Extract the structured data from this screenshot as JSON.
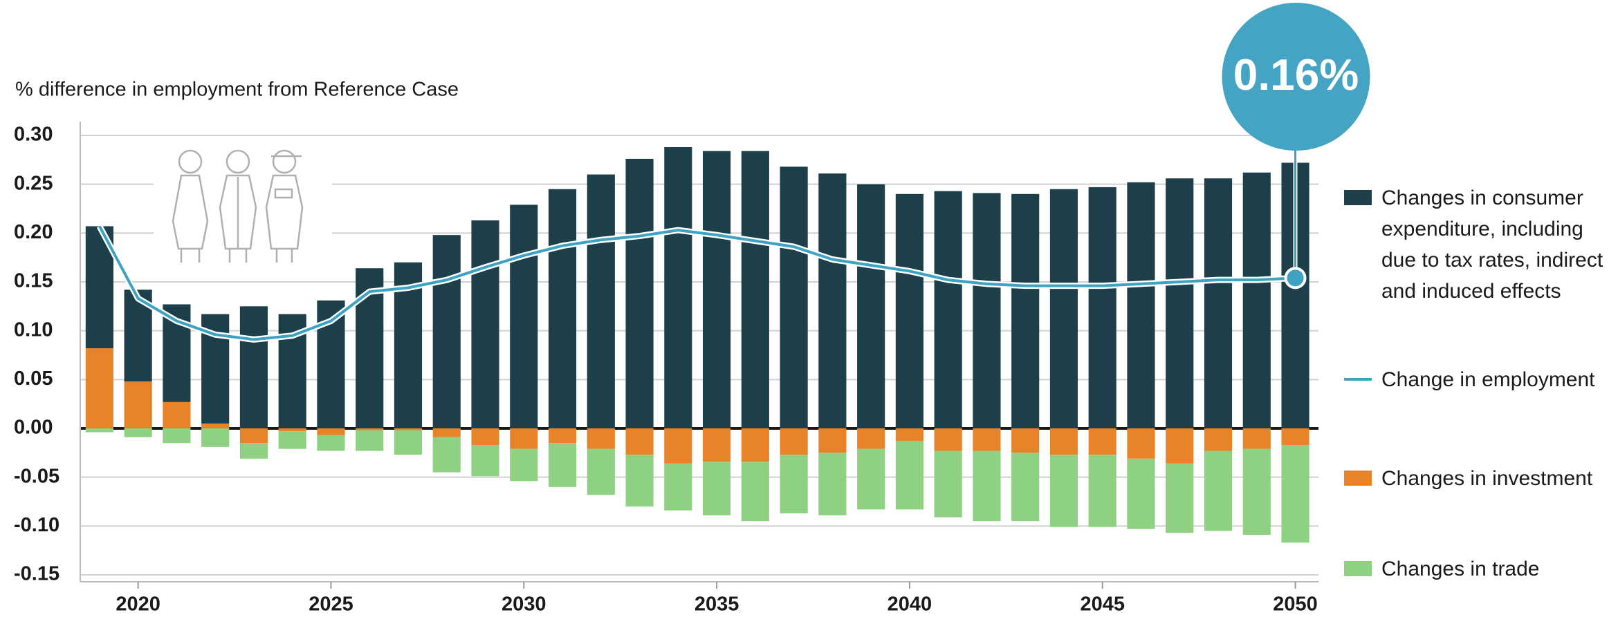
{
  "chart_data": {
    "type": "bar",
    "stacked": true,
    "ylabel": "% difference in employment from Reference Case",
    "annotation": "0.16%",
    "x": [
      2019,
      2020,
      2021,
      2022,
      2023,
      2024,
      2025,
      2026,
      2027,
      2028,
      2029,
      2030,
      2031,
      2032,
      2033,
      2034,
      2035,
      2036,
      2037,
      2038,
      2039,
      2040,
      2041,
      2042,
      2043,
      2044,
      2045,
      2046,
      2047,
      2048,
      2049,
      2050
    ],
    "xlim": [
      2018.5,
      2050.6
    ],
    "xticks": [
      2020,
      2025,
      2030,
      2035,
      2040,
      2045,
      2050
    ],
    "ylim": [
      -0.15,
      0.3
    ],
    "yticks": [
      {
        "value": -0.15,
        "label": "-0.15"
      },
      {
        "value": -0.1,
        "label": "-0.10"
      },
      {
        "value": -0.05,
        "label": "-0.05"
      },
      {
        "value": 0,
        "label": "0.00"
      },
      {
        "value": 0.05,
        "label": "0.05"
      },
      {
        "value": 0.1,
        "label": "0.10"
      },
      {
        "value": 0.15,
        "label": "0.15"
      },
      {
        "value": 0.2,
        "label": "0.20"
      },
      {
        "value": 0.25,
        "label": "0.25"
      },
      {
        "value": 0.3,
        "label": "0.30"
      }
    ],
    "grid": true,
    "legend": "right",
    "series": [
      {
        "name": "Changes in consumer expenditure, including due to tax rates, indirect and induced effects",
        "kind": "bar",
        "color": "#1c3f4a",
        "values": [
          0.125,
          0.094,
          0.1,
          0.112,
          0.125,
          0.117,
          0.131,
          0.164,
          0.17,
          0.198,
          0.213,
          0.229,
          0.245,
          0.26,
          0.276,
          0.288,
          0.284,
          0.284,
          0.268,
          0.261,
          0.25,
          0.24,
          0.243,
          0.241,
          0.24,
          0.245,
          0.247,
          0.252,
          0.256,
          0.256,
          0.262,
          0.272
        ]
      },
      {
        "name": "Change in employment",
        "kind": "line",
        "color": "#3ea2c2",
        "values": [
          0.207,
          0.133,
          0.11,
          0.096,
          0.091,
          0.095,
          0.11,
          0.14,
          0.144,
          0.152,
          0.165,
          0.177,
          0.187,
          0.193,
          0.197,
          0.203,
          0.198,
          0.192,
          0.186,
          0.173,
          0.167,
          0.161,
          0.152,
          0.148,
          0.146,
          0.146,
          0.146,
          0.148,
          0.15,
          0.152,
          0.152,
          0.154
        ]
      },
      {
        "name": "Changes in investment",
        "kind": "bar",
        "color": "#e8832a",
        "values": [
          0.082,
          0.048,
          0.027,
          0.005,
          -0.015,
          -0.003,
          -0.007,
          -0.002,
          -0.002,
          -0.009,
          -0.017,
          -0.021,
          -0.015,
          -0.021,
          -0.027,
          -0.036,
          -0.034,
          -0.034,
          -0.027,
          -0.025,
          -0.021,
          -0.013,
          -0.023,
          -0.023,
          -0.025,
          -0.027,
          -0.027,
          -0.031,
          -0.036,
          -0.023,
          -0.021,
          -0.017
        ]
      },
      {
        "name": "Changes in trade",
        "kind": "bar",
        "color": "#8fd182",
        "values": [
          -0.004,
          -0.009,
          -0.015,
          -0.019,
          -0.016,
          -0.018,
          -0.016,
          -0.021,
          -0.025,
          -0.036,
          -0.032,
          -0.033,
          -0.045,
          -0.047,
          -0.053,
          -0.048,
          -0.055,
          -0.061,
          -0.06,
          -0.064,
          -0.062,
          -0.07,
          -0.068,
          -0.072,
          -0.07,
          -0.074,
          -0.074,
          -0.072,
          -0.071,
          -0.082,
          -0.088,
          -0.1
        ]
      }
    ]
  }
}
